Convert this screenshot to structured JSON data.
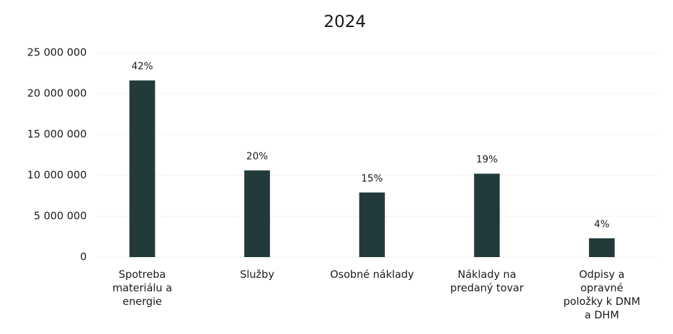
{
  "chart_data": {
    "type": "bar",
    "title": "2024",
    "categories": [
      "Spotreba\nmateriálu a\nenergie",
      "Služby",
      "Osobné náklady",
      "Náklady na\npredaný tovar",
      "Odpisy a\nopravné\npoložky k DNM\na DHM"
    ],
    "values": [
      21600000,
      10600000,
      7900000,
      10200000,
      2300000
    ],
    "annotations": [
      "42%",
      "20%",
      "15%",
      "19%",
      "4%"
    ],
    "color": "#223a3a",
    "ylim": [
      0,
      25000000
    ],
    "yticks": [
      0,
      {
        "value": 5000000,
        "label": "5 000 000"
      },
      {
        "value": 10000000,
        "label": "10 000 000"
      },
      {
        "value": 15000000,
        "label": "15 000 000"
      },
      {
        "value": 20000000,
        "label": "20 000 000"
      },
      {
        "value": 25000000,
        "label": "25 000 000"
      }
    ],
    "grid": true
  }
}
